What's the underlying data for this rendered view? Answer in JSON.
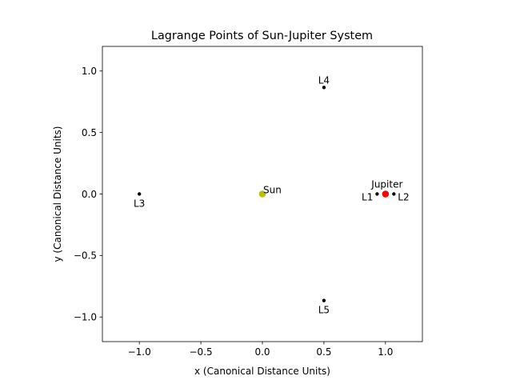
{
  "chart_data": {
    "type": "scatter",
    "title": "Lagrange Points of Sun-Jupiter System",
    "xlabel": "x (Canonical Distance Units)",
    "ylabel": "y (Canonical Distance Units)",
    "xlim": [
      -1.3,
      1.3
    ],
    "ylim": [
      -1.2,
      1.2
    ],
    "xticks": [
      -1.0,
      -0.5,
      0.0,
      0.5,
      1.0
    ],
    "xtick_labels": [
      "−1.0",
      "−0.5",
      "0.0",
      "0.5",
      "1.0"
    ],
    "yticks": [
      -1.0,
      -0.5,
      0.0,
      0.5,
      1.0
    ],
    "ytick_labels": [
      "−1.0",
      "−0.5",
      "0.0",
      "0.5",
      "1.0"
    ],
    "grid": false,
    "points": [
      {
        "label": "Sun",
        "x": 0.0,
        "y": 0.0,
        "color": "#bfbf00",
        "kind": "body"
      },
      {
        "label": "Jupiter",
        "x": 1.0,
        "y": 0.0,
        "color": "#ff0000",
        "kind": "body"
      },
      {
        "label": "L1",
        "x": 0.932,
        "y": 0.0,
        "color": "#000000",
        "kind": "lagrange"
      },
      {
        "label": "L2",
        "x": 1.068,
        "y": 0.0,
        "color": "#000000",
        "kind": "lagrange"
      },
      {
        "label": "L3",
        "x": -1.0,
        "y": 0.0,
        "color": "#000000",
        "kind": "lagrange"
      },
      {
        "label": "L4",
        "x": 0.5,
        "y": 0.866,
        "color": "#000000",
        "kind": "lagrange"
      },
      {
        "label": "L5",
        "x": 0.5,
        "y": -0.866,
        "color": "#000000",
        "kind": "lagrange"
      }
    ]
  }
}
